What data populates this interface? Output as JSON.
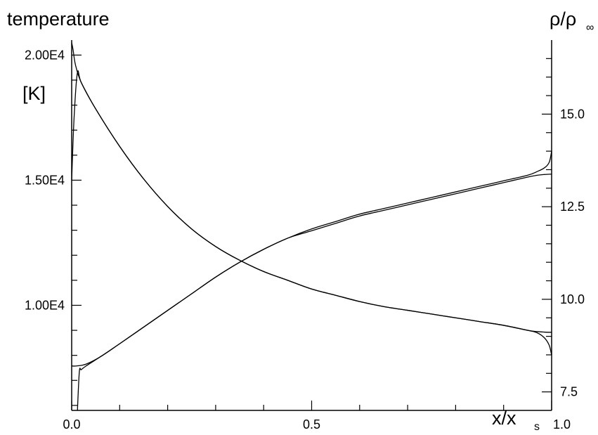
{
  "chart_data": {
    "type": "line",
    "x_axis": {
      "label_main": "x/x",
      "label_sub": "s",
      "range": [
        0.0,
        1.0
      ],
      "ticks": [
        "0.0",
        "0.5",
        "1.0"
      ]
    },
    "y_left": {
      "title": "temperature",
      "unit": "[K]",
      "range": [
        5800,
        20600
      ],
      "ticks": [
        {
          "value": 20000,
          "label": "2.00E4"
        },
        {
          "value": 15000,
          "label": "1.50E4"
        },
        {
          "value": 10000,
          "label": "1.00E4"
        }
      ]
    },
    "y_right": {
      "title": "ρ/ρ",
      "title_sub": "∞",
      "range": [
        7.0,
        17.0
      ],
      "ticks": [
        {
          "value": 15.0,
          "label": "15.0"
        },
        {
          "value": 12.5,
          "label": "12.5"
        },
        {
          "value": 10.0,
          "label": "10.0"
        },
        {
          "value": 7.5,
          "label": "7.5"
        }
      ]
    },
    "grid": false,
    "legend": "none",
    "series": [
      {
        "axis": "left",
        "x": [
          0.0,
          0.003,
          0.008,
          0.02,
          0.05,
          0.1,
          0.15,
          0.2,
          0.25,
          0.3,
          0.35,
          0.4,
          0.45,
          0.5,
          0.55,
          0.6,
          0.65,
          0.7,
          0.75,
          0.8,
          0.85,
          0.9,
          0.95,
          0.97,
          0.985,
          0.995,
          1.0
        ],
        "y": [
          20500,
          20200,
          19600,
          18900,
          17850,
          16350,
          15050,
          13950,
          13050,
          12350,
          11800,
          11350,
          11000,
          10650,
          10400,
          10150,
          9950,
          9800,
          9650,
          9500,
          9350,
          9200,
          9000,
          8900,
          8700,
          8400,
          8000
        ]
      },
      {
        "axis": "left",
        "x": [
          0.0,
          0.005,
          0.012,
          0.02,
          0.05,
          0.1,
          0.15,
          0.2,
          0.25,
          0.3,
          0.35,
          0.4,
          0.45,
          0.5,
          0.55,
          0.6,
          0.65,
          0.7,
          0.75,
          0.8,
          0.85,
          0.9,
          0.95,
          0.97,
          0.985,
          1.0
        ],
        "y": [
          15000,
          17500,
          19300,
          18900,
          17850,
          16350,
          15050,
          13950,
          13050,
          12350,
          11800,
          11350,
          11000,
          10650,
          10400,
          10150,
          9950,
          9800,
          9650,
          9500,
          9350,
          9200,
          9000,
          8950,
          8930,
          8920
        ]
      },
      {
        "axis": "right",
        "x": [
          0.0,
          0.01,
          0.03,
          0.06,
          0.1,
          0.15,
          0.2,
          0.25,
          0.3,
          0.35,
          0.4,
          0.45,
          0.5,
          0.55,
          0.6,
          0.65,
          0.7,
          0.75,
          0.8,
          0.85,
          0.9,
          0.95,
          0.97,
          0.985,
          0.995,
          1.0
        ],
        "y": [
          8.2,
          8.2,
          8.25,
          8.45,
          8.8,
          9.25,
          9.7,
          10.15,
          10.6,
          11.0,
          11.35,
          11.65,
          11.9,
          12.1,
          12.3,
          12.45,
          12.6,
          12.75,
          12.9,
          13.05,
          13.2,
          13.35,
          13.45,
          13.55,
          13.7,
          14.0
        ]
      },
      {
        "axis": "right",
        "x": [
          0.012,
          0.016,
          0.02,
          0.03,
          0.06,
          0.1,
          0.15,
          0.2,
          0.25,
          0.3,
          0.35,
          0.4,
          0.45,
          0.5,
          0.55,
          0.6,
          0.65,
          0.7,
          0.75,
          0.8,
          0.85,
          0.9,
          0.95,
          0.97,
          0.985,
          1.0
        ],
        "y": [
          7.0,
          8.05,
          8.1,
          8.2,
          8.45,
          8.8,
          9.25,
          9.7,
          10.15,
          10.6,
          11.0,
          11.35,
          11.65,
          11.85,
          12.05,
          12.25,
          12.4,
          12.55,
          12.7,
          12.85,
          13.0,
          13.15,
          13.3,
          13.35,
          13.37,
          13.38
        ]
      }
    ]
  }
}
